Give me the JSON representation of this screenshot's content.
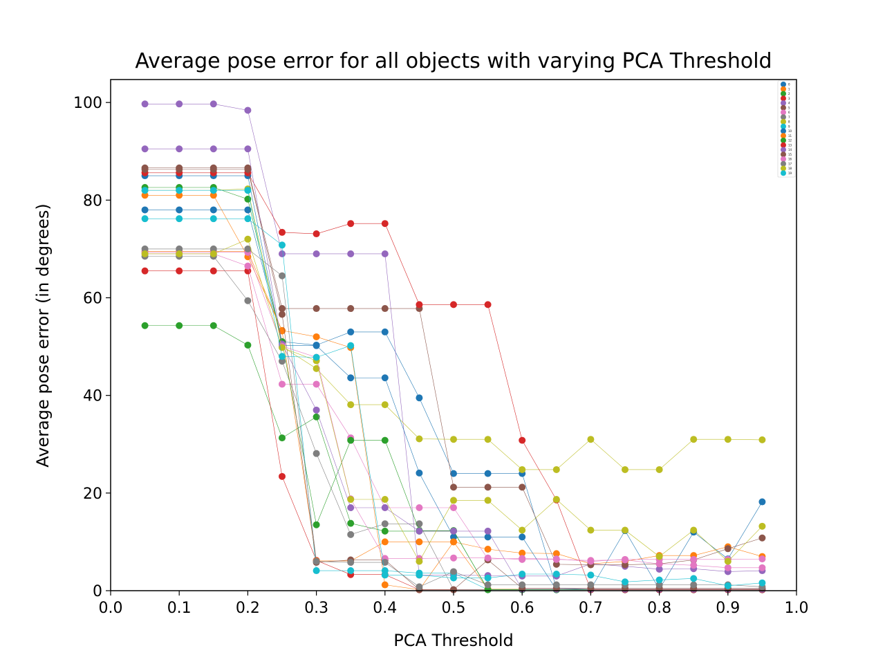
{
  "colors": [
    "#1f77b4",
    "#ff7f0e",
    "#2ca02c",
    "#d62728",
    "#9467bd",
    "#8c564b",
    "#e377c2",
    "#7f7f7f",
    "#bcbd22",
    "#17becf"
  ],
  "chart_data": {
    "type": "line",
    "title": "Average pose error for all objects with varying PCA Threshold",
    "xlabel": "PCA Threshold",
    "ylabel": "Average pose error (in degrees)",
    "xlim": [
      0.0,
      1.0
    ],
    "ylim": [
      0,
      104.7
    ],
    "xticks": [
      "0.0",
      "0.1",
      "0.2",
      "0.3",
      "0.4",
      "0.5",
      "0.6",
      "0.7",
      "0.8",
      "0.9",
      "1.0"
    ],
    "yticks": [
      "0",
      "20",
      "40",
      "60",
      "80",
      "100"
    ],
    "grid": false,
    "legend_position": "upper right",
    "x": [
      0.05,
      0.1,
      0.15,
      0.2,
      0.25,
      0.3,
      0.35,
      0.4,
      0.45,
      0.5,
      0.55,
      0.6,
      0.65,
      0.7,
      0.75,
      0.8,
      0.85,
      0.9,
      0.95
    ],
    "series": [
      {
        "name": "0",
        "values": [
          78,
          78,
          78,
          78,
          51,
          50.3,
          53,
          53,
          39.5,
          24,
          24,
          24,
          0.5,
          0.3,
          12.3,
          0.3,
          12,
          6.5,
          18.2
        ]
      },
      {
        "name": "1",
        "values": [
          81,
          81,
          81,
          68.4,
          53.3,
          52,
          49.8,
          1.2,
          0.2,
          10,
          8.5,
          7.7,
          7.6,
          5.5,
          6,
          7.2,
          7.2,
          9,
          7
        ]
      },
      {
        "name": "2",
        "values": [
          54.3,
          54.3,
          54.3,
          50.3,
          31.3,
          35.6,
          13.8,
          12.2,
          12.2,
          12.2,
          0.3,
          0.3,
          0.3,
          0.3,
          0.3,
          0.3,
          0.3,
          0.3,
          0.3
        ]
      },
      {
        "name": "3",
        "values": [
          65.5,
          65.5,
          65.5,
          65.5,
          23.4,
          6.2,
          3.3,
          3.3,
          0.2,
          0.2,
          0.2,
          0.2,
          0.2,
          0.2,
          0.2,
          0.2,
          0.2,
          0.2,
          0.2
        ]
      },
      {
        "name": "4",
        "values": [
          99.7,
          99.7,
          99.7,
          98.4,
          69,
          69,
          69,
          69,
          3.2,
          3.2,
          3.1,
          3,
          3,
          5.5,
          5,
          4.4,
          4.5,
          3.9,
          4.1
        ]
      },
      {
        "name": "5",
        "values": [
          86.6,
          86.6,
          86.6,
          86.6,
          57.8,
          57.8,
          57.8,
          57.8,
          57.8,
          21.2,
          21.2,
          21.2,
          5.4,
          5.3,
          5.3,
          5.5,
          6.3,
          8.6,
          10.8
        ]
      },
      {
        "name": "6",
        "values": [
          69,
          69,
          69,
          66.5,
          42.3,
          42.3,
          31.3,
          17,
          17,
          17,
          6.5,
          6.6,
          6.5,
          6,
          6.4,
          6.4,
          6.4,
          6.4,
          6.5
        ]
      },
      {
        "name": "7",
        "values": [
          68.5,
          68.5,
          68.5,
          59.4,
          47,
          28.1,
          11.5,
          13.7,
          13.7,
          0.2,
          0.2,
          0.2,
          0.2,
          0.2,
          0.2,
          0.2,
          0.2,
          0.2,
          0.2
        ]
      },
      {
        "name": "8",
        "values": [
          82,
          82,
          82,
          82.3,
          50,
          45.5,
          38.1,
          38.1,
          31.1,
          31,
          31,
          24.8,
          24.8,
          31,
          24.8,
          24.8,
          31,
          31,
          30.9
        ]
      },
      {
        "name": "9",
        "values": [
          76.2,
          76.2,
          76.2,
          76.2,
          70.8,
          4.1,
          4.1,
          4.1,
          3.6,
          3.6,
          0.2,
          0.2,
          0.2,
          0.2,
          0.2,
          0.2,
          0.2,
          0.2,
          0.2
        ]
      },
      {
        "name": "10",
        "values": [
          85,
          85,
          85,
          85,
          50.2,
          50.2,
          43.6,
          43.6,
          24.1,
          11,
          11,
          11,
          0.2,
          0.2,
          0.2,
          0.2,
          0.2,
          0.2,
          0.2
        ]
      },
      {
        "name": "11",
        "values": [
          69.5,
          69.5,
          69.5,
          69.5,
          53.2,
          6.1,
          6.1,
          10,
          10,
          10,
          0.3,
          0.3,
          0.3,
          0.3,
          0.3,
          0.3,
          0.3,
          0.3,
          0.3
        ]
      },
      {
        "name": "12",
        "values": [
          82.6,
          82.6,
          82.6,
          80.2,
          51,
          13.5,
          30.8,
          30.8,
          12.3,
          12.3,
          0.2,
          0.2,
          0.2,
          0.2,
          0.2,
          0.2,
          0.2,
          0.2,
          0.2
        ]
      },
      {
        "name": "13",
        "values": [
          85.6,
          85.6,
          85.6,
          85.6,
          73.4,
          73.1,
          75.2,
          75.2,
          58.6,
          58.6,
          58.6,
          30.8,
          18.6,
          0.2,
          0.2,
          0.2,
          0.2,
          0.2,
          0.2
        ]
      },
      {
        "name": "14",
        "values": [
          90.5,
          90.5,
          90.5,
          90.5,
          50.5,
          37,
          17,
          17,
          12.2,
          12.2,
          12.2,
          0.3,
          0.3,
          0.3,
          0.3,
          0.3,
          0.3,
          0.3,
          0.3
        ]
      },
      {
        "name": "15",
        "values": [
          86.3,
          86.3,
          86.3,
          86.3,
          56.6,
          5.8,
          6.3,
          6.3,
          0.2,
          0.2,
          6.3,
          0.5,
          0.5,
          0.5,
          0.5,
          0.5,
          0.5,
          0.5,
          0.5
        ]
      },
      {
        "name": "16",
        "values": [
          69.3,
          69.3,
          69.3,
          69.3,
          50.1,
          47.8,
          18.8,
          6.6,
          6.6,
          6.7,
          6.7,
          6.4,
          6.4,
          6.2,
          6.3,
          5.5,
          5.2,
          4.7,
          4.7
        ]
      },
      {
        "name": "17",
        "values": [
          70,
          70,
          70,
          70,
          64.5,
          6,
          5.8,
          5.8,
          0.8,
          3.9,
          1.2,
          1.2,
          1.2,
          1.2,
          1.2,
          1.2,
          1.2,
          1.2,
          0.8
        ]
      },
      {
        "name": "18",
        "values": [
          69,
          69,
          69,
          72,
          49.8,
          47.1,
          18.7,
          18.7,
          6,
          18.5,
          18.5,
          12.4,
          18.7,
          12.4,
          12.4,
          7,
          12.4,
          6,
          13.2
        ]
      },
      {
        "name": "19",
        "values": [
          82,
          82,
          82,
          82,
          48,
          47.8,
          50.2,
          3.2,
          3.2,
          2.6,
          2.6,
          3.4,
          3.4,
          3.2,
          1.8,
          2.2,
          2.5,
          1,
          1.6
        ]
      }
    ]
  }
}
